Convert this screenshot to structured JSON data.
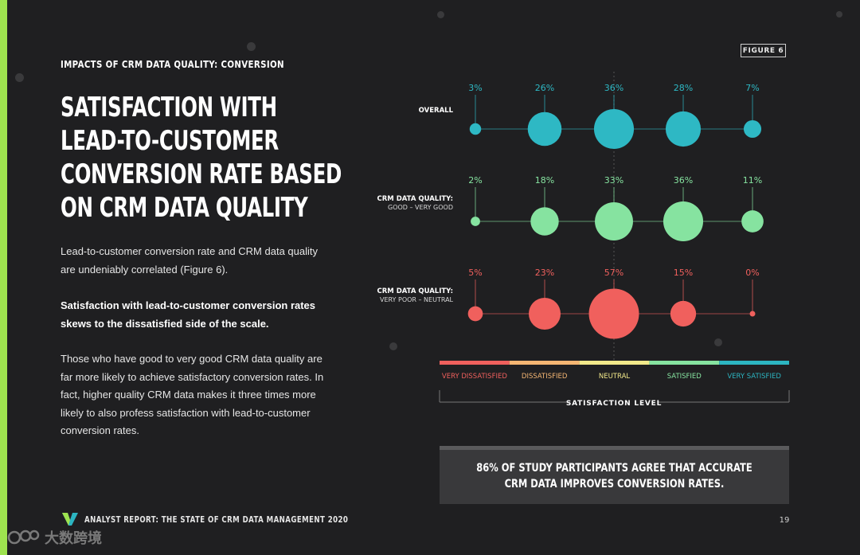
{
  "header": {
    "kicker": "IMPACTS OF CRM DATA QUALITY: CONVERSION",
    "figure_badge": "FIGURE 6"
  },
  "title_lines": [
    "SATISFACTION WITH",
    "LEAD-TO-CUSTOMER",
    "CONVERSION RATE BASED",
    "ON CRM DATA QUALITY"
  ],
  "body": {
    "p1": "Lead-to-customer conversion rate and CRM data quality are undeniably correlated (Figure 6).",
    "p2": "Satisfaction with lead-to-customer conversion rates skews to the dissatisfied side of the scale.",
    "p3": "Those who have good to very good CRM data quality are far more likely to achieve satisfactory conversion rates. In fact, higher quality CRM data makes it three times more likely to also profess satisfaction with lead-to-customer conversion rates."
  },
  "chart_data": {
    "type": "scatter",
    "title": "Satisfaction with lead-to-customer conversion rate based on CRM data quality",
    "xlabel": "SATISFACTION LEVEL",
    "categories": [
      "VERY DISSATISFIED",
      "DISSATISFIED",
      "NEUTRAL",
      "SATISFIED",
      "VERY SATISFIED"
    ],
    "category_colors": [
      "#f0605d",
      "#f5b673",
      "#f2e98a",
      "#86e3a0",
      "#2cb5c1"
    ],
    "series": [
      {
        "name": "OVERALL",
        "sub": "",
        "color": "#2eb8c4",
        "labels": [
          "3%",
          "26%",
          "36%",
          "28%",
          "7%"
        ],
        "values": [
          3,
          26,
          36,
          28,
          7
        ]
      },
      {
        "name": "CRM DATA QUALITY:",
        "sub": "GOOD – VERY GOOD",
        "color": "#86e3a0",
        "labels": [
          "2%",
          "18%",
          "33%",
          "36%",
          "11%"
        ],
        "values": [
          2,
          18,
          33,
          36,
          11
        ]
      },
      {
        "name": "CRM DATA QUALITY:",
        "sub": "VERY POOR – NEUTRAL",
        "color": "#f0605d",
        "labels": [
          "5%",
          "23%",
          "57%",
          "15%",
          "0%"
        ],
        "values": [
          5,
          23,
          57,
          15,
          0
        ]
      }
    ]
  },
  "callout": {
    "line1": "86% OF STUDY PARTICIPANTS AGREE THAT ACCURATE",
    "line2": "CRM DATA IMPROVES CONVERSION RATES."
  },
  "footer": {
    "report": "ANALYST REPORT: THE STATE OF CRM DATA MANAGEMENT 2020",
    "page": "19"
  },
  "watermark": "大数跨境",
  "colors": {
    "background": "#1f1f21",
    "accent": "#9ee34f"
  }
}
